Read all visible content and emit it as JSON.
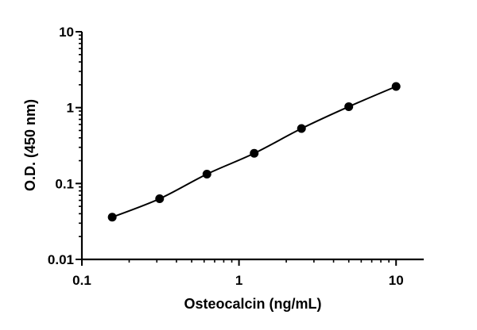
{
  "chart_data": {
    "type": "scatter",
    "xlabel": "Osteocalcin (ng/mL)",
    "ylabel": "O.D. (450 nm)",
    "xscale": "log",
    "yscale": "log",
    "xlim": [
      0.1,
      15
    ],
    "ylim": [
      0.01,
      10
    ],
    "grid": false,
    "legend": "none",
    "x_ticks": [
      {
        "value": 0.1,
        "label": "0.1"
      },
      {
        "value": 1,
        "label": "1"
      },
      {
        "value": 10,
        "label": "10"
      }
    ],
    "y_ticks": [
      {
        "value": 0.01,
        "label": "0.01"
      },
      {
        "value": 0.1,
        "label": "0.1"
      },
      {
        "value": 1,
        "label": "1"
      },
      {
        "value": 10,
        "label": "10"
      }
    ],
    "series": [
      {
        "x": [
          0.156,
          0.3125,
          0.625,
          1.25,
          2.5,
          5,
          10
        ],
        "y": [
          0.036,
          0.063,
          0.133,
          0.25,
          0.53,
          1.03,
          1.9
        ],
        "marker": "filled-circle",
        "line": "fitted-curve",
        "color": "#000000"
      }
    ]
  }
}
